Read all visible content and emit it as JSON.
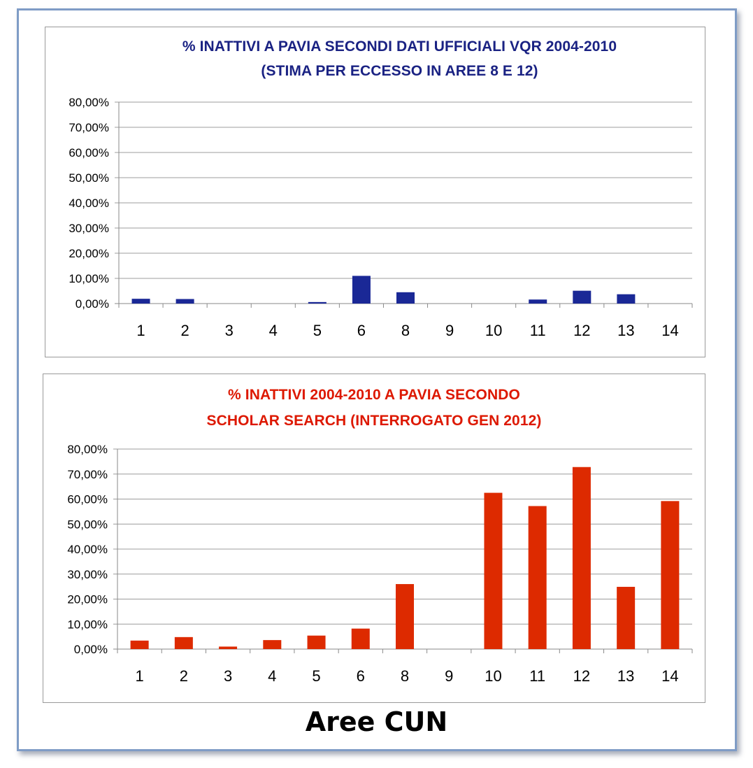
{
  "colors": {
    "top_bar": "#1a2896",
    "bottom_bar": "#dd2a00",
    "top_title": "#1a2283",
    "bottom_title": "#dd1800",
    "frame": "#7f9cc6"
  },
  "footer": {
    "label": "Aree CUN"
  },
  "chart_data": [
    {
      "type": "bar",
      "title_lines": [
        "% INATTIVI A PAVIA SECONDI DATI UFFICIALI VQR 2004-2010",
        "(STIMA PER ECCESSO IN AREE 8 E 12)"
      ],
      "categories": [
        "1",
        "2",
        "3",
        "4",
        "5",
        "6",
        "8",
        "9",
        "10",
        "11",
        "12",
        "13",
        "14"
      ],
      "values": [
        1.9,
        1.8,
        0,
        0,
        0.6,
        11.0,
        4.5,
        0,
        0,
        1.6,
        5.1,
        3.7,
        0
      ],
      "y_ticks": [
        "0,00%",
        "10,00%",
        "20,00%",
        "30,00%",
        "40,00%",
        "50,00%",
        "60,00%",
        "70,00%",
        "80,00%"
      ],
      "ylim": [
        0,
        80
      ],
      "grid": true,
      "xlabel": "",
      "ylabel": ""
    },
    {
      "type": "bar",
      "title_lines": [
        "% INATTIVI 2004-2010 A PAVIA SECONDO",
        "SCHOLAR SEARCH (INTERROGATO GEN 2012)"
      ],
      "categories": [
        "1",
        "2",
        "3",
        "4",
        "5",
        "6",
        "8",
        "9",
        "10",
        "11",
        "12",
        "13",
        "14"
      ],
      "values": [
        3.4,
        4.8,
        1.0,
        3.6,
        5.4,
        8.2,
        26.0,
        0,
        62.5,
        57.2,
        72.8,
        24.9,
        59.2
      ],
      "y_ticks": [
        "0,00%",
        "10,00%",
        "20,00%",
        "30,00%",
        "40,00%",
        "50,00%",
        "60,00%",
        "70,00%",
        "80,00%"
      ],
      "ylim": [
        0,
        80
      ],
      "grid": true,
      "xlabel": "",
      "ylabel": ""
    }
  ]
}
